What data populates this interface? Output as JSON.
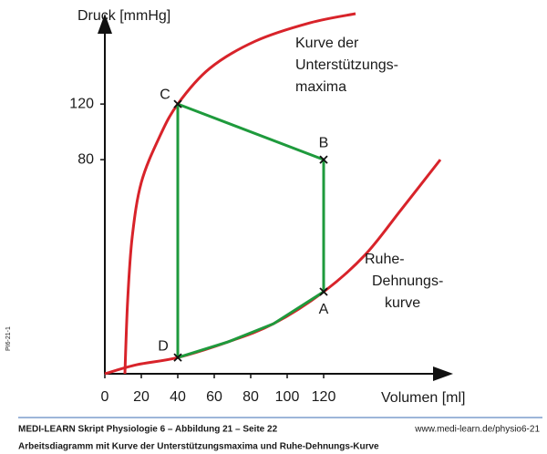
{
  "chart_data": {
    "type": "line",
    "y_label": "Druck [mmHg]",
    "x_label": "Volumen [ml]",
    "xlim": [
      0,
      191
    ],
    "ylim": [
      -74,
      185
    ],
    "xticks": [
      0,
      20,
      40,
      60,
      80,
      100,
      120
    ],
    "yticks": [
      80,
      120
    ],
    "series": [
      {
        "name": "Kurve der Unterstützungsmaxima",
        "color": "#d8232a",
        "x": [
          11,
          12.5,
          15,
          20,
          30,
          40,
          57.5,
          82.5,
          112.5,
          137.5
        ],
        "values": [
          -74,
          -21.6,
          24.3,
          63.6,
          96.4,
          120,
          145.6,
          165.2,
          178.4,
          185
        ]
      },
      {
        "name": "Ruhe-Dehnungskurve",
        "color": "#d8232a",
        "x": [
          0,
          17.5,
          40,
          67.5,
          92.5,
          120,
          142.5,
          162.5,
          184
        ],
        "values": [
          -74,
          -67.5,
          -62.3,
          -51.1,
          -38,
          -15,
          11.2,
          44,
          80
        ]
      },
      {
        "name": "Arbeitsdiagramm",
        "color": "#1e9a3c",
        "x": [
          40,
          40,
          120,
          120,
          92.5,
          67.5,
          40
        ],
        "values": [
          -62.3,
          120,
          80,
          -15,
          -38,
          -51.1,
          -62.3
        ]
      }
    ],
    "point_labels": [
      "D",
      "C",
      "B",
      "A"
    ],
    "annotations": [
      [
        "Kurve der",
        "Unterstützungs-",
        "maxima"
      ],
      [
        "Ruhe-",
        "Dehnungs-",
        "kurve"
      ]
    ],
    "footer": {
      "line1": "MEDI-LEARN Skript Physiologie 6 – Abbildung 21 – Seite 22",
      "url": "www.medi-learn.de/physio6-21",
      "line2": "Arbeitsdiagramm mit Kurve der Unterstützungsmaxima und Ruhe-Dehnungs-Kurve",
      "side": "PI6-21-1"
    }
  }
}
